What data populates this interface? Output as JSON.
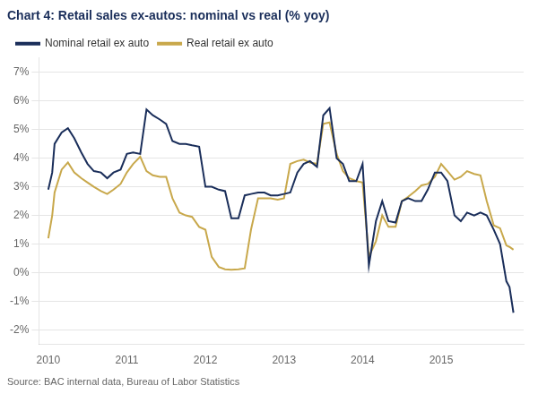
{
  "chart_data": {
    "type": "line",
    "title": "Chart 4: Retail sales ex-autos: nominal vs real (% yoy)",
    "annotations": [
      "Source: BAC internal data, Bureau of Labor Statistics"
    ],
    "x": [
      2010.0,
      2010.05,
      2010.08,
      2010.17,
      2010.25,
      2010.33,
      2010.42,
      2010.5,
      2010.58,
      2010.67,
      2010.75,
      2010.83,
      2010.92,
      2011.0,
      2011.08,
      2011.17,
      2011.25,
      2011.33,
      2011.42,
      2011.5,
      2011.58,
      2011.67,
      2011.75,
      2011.83,
      2011.92,
      2012.0,
      2012.08,
      2012.17,
      2012.25,
      2012.33,
      2012.42,
      2012.5,
      2012.58,
      2012.67,
      2012.75,
      2012.83,
      2012.92,
      2013.0,
      2013.08,
      2013.17,
      2013.25,
      2013.33,
      2013.42,
      2013.5,
      2013.58,
      2013.67,
      2013.75,
      2013.83,
      2013.92,
      2014.0,
      2014.08,
      2014.17,
      2014.25,
      2014.33,
      2014.42,
      2014.5,
      2014.58,
      2014.67,
      2014.75,
      2014.83,
      2014.92,
      2015.0,
      2015.08,
      2015.17,
      2015.25,
      2015.33,
      2015.42,
      2015.5,
      2015.58,
      2015.67,
      2015.75,
      2015.83,
      2015.87,
      2015.92
    ],
    "series": [
      {
        "name": "Nominal retail ex auto",
        "color": "#1a2e5a",
        "values": [
          2.9,
          3.5,
          4.5,
          4.9,
          5.05,
          4.7,
          4.2,
          3.8,
          3.55,
          3.5,
          3.3,
          3.5,
          3.6,
          4.15,
          4.2,
          4.15,
          5.7,
          5.5,
          5.35,
          5.2,
          4.6,
          4.5,
          4.5,
          4.45,
          4.4,
          3.0,
          3.0,
          2.9,
          2.85,
          1.9,
          1.9,
          2.7,
          2.75,
          2.8,
          2.8,
          2.7,
          2.7,
          2.75,
          2.8,
          3.5,
          3.8,
          3.9,
          3.7,
          5.5,
          5.75,
          4.0,
          3.8,
          3.2,
          3.2,
          3.8,
          0.25,
          1.8,
          2.5,
          1.8,
          1.75,
          2.5,
          2.6,
          2.5,
          2.5,
          2.9,
          3.5,
          3.5,
          3.2,
          2.0,
          1.8,
          2.1,
          2.0,
          2.1,
          2.0,
          1.5,
          1.0,
          -0.3,
          -0.5,
          -1.4
        ]
      },
      {
        "name": "Real retail ex auto",
        "color": "#c8a84b",
        "values": [
          1.2,
          2.0,
          2.8,
          3.6,
          3.85,
          3.5,
          3.3,
          3.15,
          3.0,
          2.85,
          2.75,
          2.9,
          3.1,
          3.5,
          3.8,
          4.05,
          3.55,
          3.4,
          3.35,
          3.35,
          2.6,
          2.1,
          2.0,
          1.95,
          1.6,
          1.5,
          0.55,
          0.2,
          0.12,
          0.1,
          0.12,
          0.15,
          1.5,
          2.6,
          2.6,
          2.6,
          2.55,
          2.6,
          3.8,
          3.9,
          3.95,
          3.85,
          3.8,
          5.2,
          5.25,
          4.15,
          3.55,
          3.3,
          3.2,
          3.15,
          0.55,
          1.1,
          2.0,
          1.6,
          1.6,
          2.5,
          2.65,
          2.85,
          3.05,
          3.1,
          3.35,
          3.8,
          3.55,
          3.25,
          3.35,
          3.55,
          3.45,
          3.4,
          2.5,
          1.65,
          1.55,
          0.95,
          0.9,
          0.8
        ]
      }
    ],
    "xlim": [
      2009.88,
      2016.05
    ],
    "xticks": [
      2010,
      2011,
      2012,
      2013,
      2014,
      2015
    ],
    "ylim": [
      -2.5,
      7.5
    ],
    "yticks": [
      {
        "value": -2,
        "label": "-2%"
      },
      {
        "value": -1,
        "label": "-1%"
      },
      {
        "value": 0,
        "label": "0%"
      },
      {
        "value": 1,
        "label": "1%"
      },
      {
        "value": 2,
        "label": "2%"
      },
      {
        "value": 3,
        "label": "3%"
      },
      {
        "value": 4,
        "label": "4%"
      },
      {
        "value": 5,
        "label": "5%"
      },
      {
        "value": 6,
        "label": "6%"
      },
      {
        "value": 7,
        "label": "7%"
      }
    ],
    "grid": "y",
    "legend": "upper left"
  }
}
